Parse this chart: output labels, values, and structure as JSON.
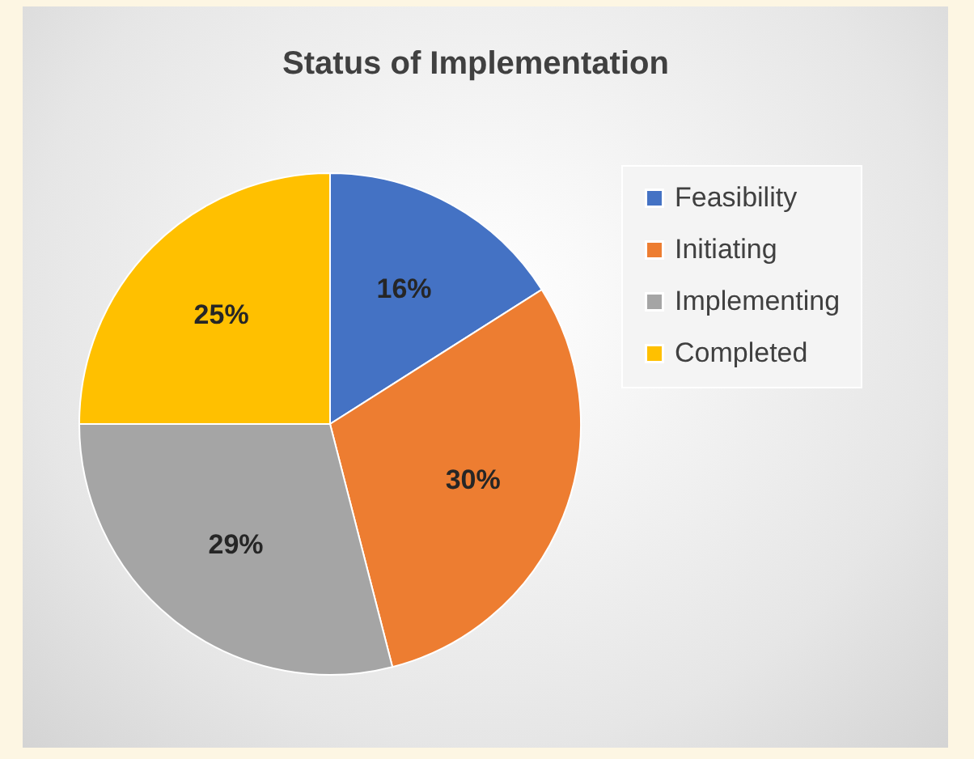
{
  "chart_data": {
    "type": "pie",
    "title": "Status of Implementation",
    "categories": [
      "Feasibility",
      "Initiating",
      "Implementing",
      "Completed"
    ],
    "values": [
      16,
      30,
      29,
      25
    ],
    "colors": [
      "#4472c4",
      "#ed7d31",
      "#a5a5a5",
      "#ffc000"
    ],
    "value_labels": [
      "16%",
      "30%",
      "29%",
      "25%"
    ],
    "legend": "right"
  }
}
